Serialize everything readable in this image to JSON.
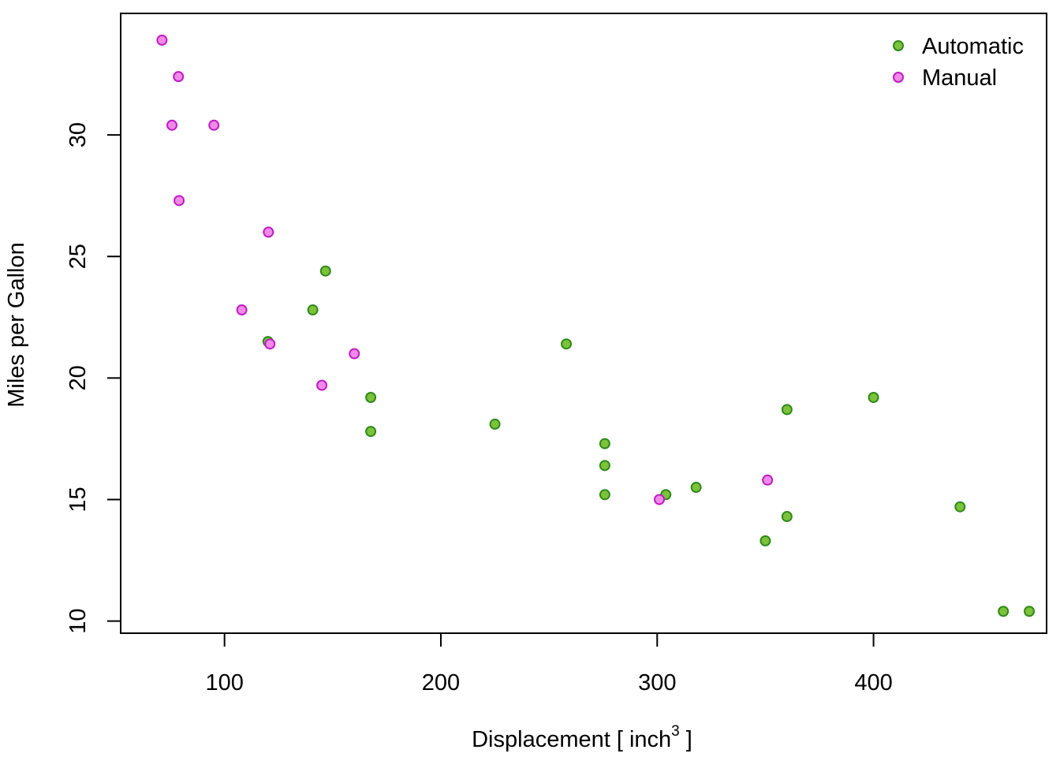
{
  "chart_data": {
    "type": "scatter",
    "title": "",
    "xlabel": "Displacement [ inch",
    "xlabel_superscript": "3",
    "xlabel_suffix": " ]",
    "ylabel": "Miles per Gallon",
    "xlim": [
      52,
      480
    ],
    "ylim": [
      9.5,
      35
    ],
    "xticks": [
      100,
      200,
      300,
      400
    ],
    "yticks": [
      10,
      15,
      20,
      25,
      30
    ],
    "grid": false,
    "legend_position": "top-right",
    "series": [
      {
        "name": "Automatic",
        "fill": "#7cc23a",
        "stroke": "#2f8a1a",
        "points": [
          [
            258,
            21.4
          ],
          [
            360,
            18.7
          ],
          [
            225,
            18.1
          ],
          [
            360,
            14.3
          ],
          [
            146.7,
            24.4
          ],
          [
            140.8,
            22.8
          ],
          [
            167.6,
            19.2
          ],
          [
            167.6,
            17.8
          ],
          [
            275.8,
            16.4
          ],
          [
            275.8,
            17.3
          ],
          [
            275.8,
            15.2
          ],
          [
            472,
            10.4
          ],
          [
            460,
            10.4
          ],
          [
            440,
            14.7
          ],
          [
            120.1,
            21.5
          ],
          [
            318,
            15.5
          ],
          [
            304,
            15.2
          ],
          [
            350,
            13.3
          ],
          [
            400,
            19.2
          ]
        ]
      },
      {
        "name": "Manual",
        "fill": "#f08ae8",
        "stroke": "#c21bc4",
        "points": [
          [
            160,
            21.0
          ],
          [
            108,
            22.8
          ],
          [
            78.7,
            32.4
          ],
          [
            75.7,
            30.4
          ],
          [
            71.1,
            33.9
          ],
          [
            79,
            27.3
          ],
          [
            120.3,
            26.0
          ],
          [
            95.1,
            30.4
          ],
          [
            351,
            15.8
          ],
          [
            145,
            19.7
          ],
          [
            301,
            15.0
          ],
          [
            121,
            21.4
          ]
        ]
      }
    ]
  }
}
